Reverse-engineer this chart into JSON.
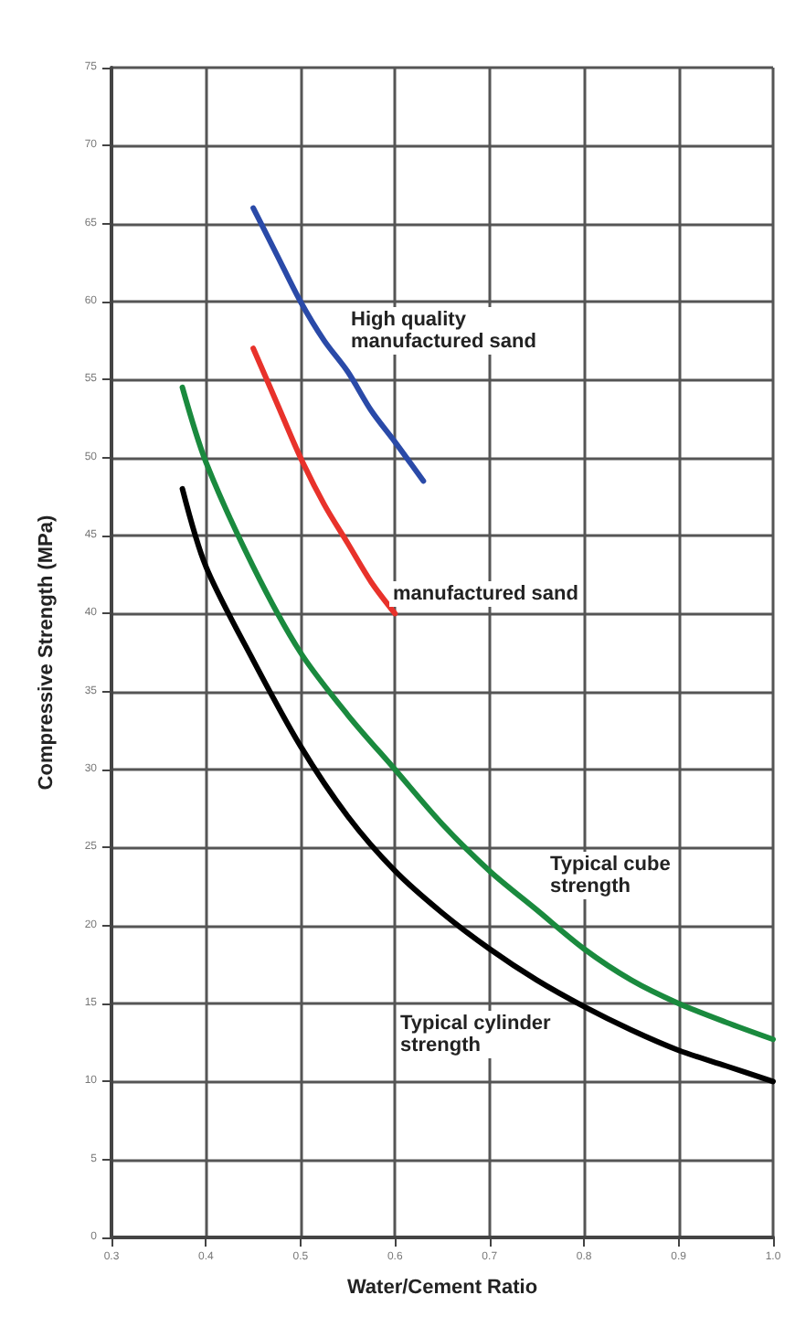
{
  "chart_data": {
    "type": "line",
    "xlabel": "Water/Cement Ratio",
    "ylabel": "Compressive Strength (MPa)",
    "xlim": [
      0.3,
      1.0
    ],
    "xticks": [
      0.3,
      0.4,
      0.5,
      0.6,
      0.7,
      0.8,
      0.9,
      {
        "value": 1.0,
        "label": "1.0"
      }
    ],
    "ylim": [
      0,
      75
    ],
    "yticks": [
      0,
      5,
      10,
      15,
      20,
      25,
      30,
      35,
      40,
      45,
      50,
      55,
      60,
      65,
      70,
      75
    ],
    "grid": true,
    "marker": "none",
    "line_style": "solid",
    "series": [
      {
        "color": "#2a4aa8",
        "x": [
          0.45,
          0.475,
          0.5,
          0.525,
          0.55,
          0.575,
          0.6,
          0.63
        ],
        "values": [
          66,
          63,
          60,
          57.5,
          55.5,
          53,
          51,
          48.5
        ]
      },
      {
        "color": "#e8322b",
        "x": [
          0.45,
          0.475,
          0.5,
          0.525,
          0.55,
          0.575,
          0.6
        ],
        "values": [
          57,
          53.5,
          50,
          47,
          44.5,
          42,
          40
        ]
      },
      {
        "color": "#1a8a3e",
        "x": [
          0.375,
          0.4,
          0.45,
          0.5,
          0.55,
          0.6,
          0.65,
          0.7,
          0.75,
          0.8,
          0.85,
          0.9,
          0.95,
          1.0
        ],
        "values": [
          54.5,
          49.7,
          43,
          37.5,
          33.5,
          30,
          26.5,
          23.5,
          21,
          18.5,
          16.5,
          15,
          13.8,
          12.7
        ]
      },
      {
        "color": "#000000",
        "x": [
          0.375,
          0.4,
          0.45,
          0.5,
          0.55,
          0.6,
          0.65,
          0.7,
          0.75,
          0.8,
          0.85,
          0.9,
          0.95,
          1.0
        ],
        "values": [
          48,
          43,
          37,
          31.5,
          27,
          23.5,
          20.8,
          18.5,
          16.5,
          14.8,
          13.3,
          12,
          11,
          10
        ]
      }
    ],
    "annotations": [
      "High quality\nmanufactured sand",
      "manufactured sand",
      "Typical cube\nstrength",
      "Typical cylinder\nstrength"
    ]
  }
}
